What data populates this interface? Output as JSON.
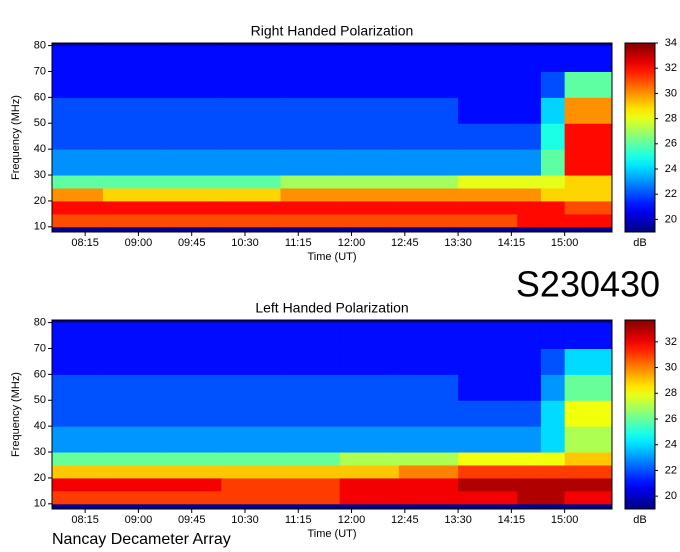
{
  "event_id": "S230430",
  "source": "Nancay Decameter Array",
  "chart_data": [
    {
      "type": "heatmap",
      "title": "Right Handed Polarization",
      "x_label": "Time (UT)",
      "y_label": "Frequency (MHz)",
      "colorbar_label": "dB",
      "colormap": "jet",
      "xlim": [
        467,
        940
      ],
      "xticks": [
        {
          "value": 495,
          "label": "08:15"
        },
        {
          "value": 540,
          "label": "09:00"
        },
        {
          "value": 585,
          "label": "09:45"
        },
        {
          "value": 630,
          "label": "10:30"
        },
        {
          "value": 675,
          "label": "11:15"
        },
        {
          "value": 720,
          "label": "12:00"
        },
        {
          "value": 765,
          "label": "12:45"
        },
        {
          "value": 810,
          "label": "13:30"
        },
        {
          "value": 855,
          "label": "14:15"
        },
        {
          "value": 900,
          "label": "15:00"
        }
      ],
      "ylim": [
        8,
        81
      ],
      "yticks": [
        10,
        20,
        30,
        40,
        50,
        60,
        70,
        80
      ],
      "zlim": [
        19,
        34
      ],
      "zticks": [
        20,
        22,
        24,
        26,
        28,
        30,
        32,
        34
      ],
      "x_bins": [
        467,
        510,
        560,
        610,
        660,
        710,
        760,
        810,
        860,
        880,
        900,
        940
      ],
      "y_bins": [
        10,
        15,
        20,
        25,
        30,
        40,
        50,
        60,
        70,
        80
      ],
      "z": [
        [
          31,
          31,
          31,
          31,
          31,
          31,
          31,
          31,
          32,
          32,
          32
        ],
        [
          32,
          32,
          32,
          32,
          32,
          32,
          32,
          32,
          32,
          32,
          31
        ],
        [
          30,
          29,
          29,
          29,
          30,
          30,
          30,
          30,
          30,
          29,
          29
        ],
        [
          26,
          26,
          26,
          26,
          27,
          27,
          27,
          28,
          28,
          28,
          29
        ],
        [
          23,
          23,
          23,
          23,
          23,
          23,
          23,
          23,
          23,
          26,
          32
        ],
        [
          22,
          22,
          22,
          22,
          22,
          22,
          22,
          22,
          22,
          25,
          32
        ],
        [
          22,
          22,
          22,
          22,
          22,
          22,
          22,
          21,
          21,
          24,
          30
        ],
        [
          21,
          21,
          21,
          21,
          21,
          21,
          21,
          21,
          21,
          22,
          26
        ],
        [
          21,
          21,
          21,
          21,
          21,
          21,
          21,
          21,
          21,
          21,
          21
        ]
      ]
    },
    {
      "type": "heatmap",
      "title": "Left Handed Polarization",
      "x_label": "Time (UT)",
      "y_label": "Frequency (MHz)",
      "colorbar_label": "dB",
      "colormap": "jet",
      "xlim": [
        467,
        940
      ],
      "xticks": [
        {
          "value": 495,
          "label": "08:15"
        },
        {
          "value": 540,
          "label": "09:00"
        },
        {
          "value": 585,
          "label": "09:45"
        },
        {
          "value": 630,
          "label": "10:30"
        },
        {
          "value": 675,
          "label": "11:15"
        },
        {
          "value": 720,
          "label": "12:00"
        },
        {
          "value": 765,
          "label": "12:45"
        },
        {
          "value": 810,
          "label": "13:30"
        },
        {
          "value": 855,
          "label": "14:15"
        },
        {
          "value": 900,
          "label": "15:00"
        }
      ],
      "ylim": [
        8,
        81
      ],
      "yticks": [
        10,
        20,
        30,
        40,
        50,
        60,
        70,
        80
      ],
      "zlim": [
        19,
        33.7
      ],
      "zticks": [
        20,
        22,
        24,
        26,
        28,
        30,
        32
      ],
      "x_bins": [
        467,
        510,
        560,
        610,
        660,
        710,
        760,
        810,
        860,
        880,
        900,
        940
      ],
      "y_bins": [
        10,
        15,
        20,
        25,
        30,
        40,
        50,
        60,
        70,
        80
      ],
      "z": [
        [
          31,
          31,
          31,
          31,
          31,
          32,
          32,
          32,
          33,
          33,
          32
        ],
        [
          32,
          32,
          32,
          31,
          31,
          32,
          32,
          33,
          33,
          33,
          33
        ],
        [
          29,
          29,
          29,
          29,
          29,
          29,
          30,
          31,
          31,
          31,
          31
        ],
        [
          26,
          26,
          26,
          26,
          26,
          27,
          27,
          28,
          28,
          28,
          29
        ],
        [
          23,
          23,
          23,
          23,
          23,
          23,
          23,
          23,
          23,
          24,
          27
        ],
        [
          22,
          22,
          22,
          22,
          22,
          22,
          22,
          22,
          22,
          24,
          28
        ],
        [
          22,
          22,
          22,
          22,
          22,
          22,
          22,
          21,
          21,
          23,
          26
        ],
        [
          21,
          21,
          21,
          21,
          21,
          21,
          21,
          21,
          21,
          22,
          24
        ],
        [
          21,
          21,
          21,
          21,
          21,
          21,
          21,
          21,
          21,
          21,
          21
        ]
      ]
    }
  ]
}
